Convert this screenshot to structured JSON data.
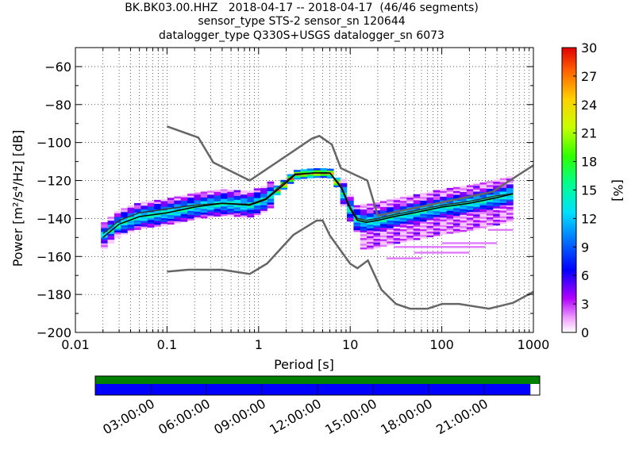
{
  "title_lines": [
    "BK.BK03.00.HHZ   2018-04-17 -- 2018-04-17  (46/46 segments)",
    "sensor_type STS-2 sensor_sn 120644",
    "datalogger_type Q330S+USGS datalogger_sn 6073"
  ],
  "chart_data": [
    {
      "type": "heatmap",
      "xlabel": "Period [s]",
      "ylabel": "Power [m²/s⁴/Hz] [dB]",
      "xscale": "log",
      "xlim": [
        0.01,
        1000
      ],
      "ylim": [
        -200,
        -50
      ],
      "x_ticks": [
        0.01,
        0.1,
        1,
        10,
        100,
        1000
      ],
      "x_tick_labels": [
        "0.01",
        "0.1",
        "1",
        "10",
        "100",
        "1000"
      ],
      "y_ticks": [
        -200,
        -180,
        -160,
        -140,
        -120,
        -100,
        -80,
        -60
      ],
      "grid": true,
      "colorbar": {
        "label": "[%]",
        "range": [
          0,
          30
        ],
        "ticks": [
          0,
          3,
          6,
          9,
          12,
          15,
          18,
          21,
          24,
          27,
          30
        ]
      },
      "nlnm": {
        "name": "low noise model",
        "period": [
          0.1,
          0.17,
          0.4,
          0.8,
          1.24,
          2.4,
          4.3,
          5.0,
          6.0,
          10.0,
          12.0,
          15.6,
          21.9,
          31.6,
          45,
          70,
          101,
          154,
          328,
          600,
          1000
        ],
        "power": [
          -168,
          -167,
          -167,
          -169.2,
          -163.7,
          -148.6,
          -141.1,
          -141.1,
          -149.0,
          -163.8,
          -166.2,
          -162.1,
          -177.5,
          -185.0,
          -187.5,
          -187.5,
          -185.0,
          -185.0,
          -187.5,
          -184.4,
          -178.6
        ]
      },
      "nhnm": {
        "name": "high noise model",
        "period": [
          0.1,
          0.22,
          0.32,
          0.8,
          3.8,
          4.6,
          6.3,
          7.9,
          15.4,
          20.0,
          354.8,
          1000
        ],
        "power": [
          -91.5,
          -97.4,
          -110.5,
          -120.0,
          -98.0,
          -96.5,
          -101.0,
          -113.5,
          -120.0,
          -138.5,
          -126.0,
          -112.0
        ]
      },
      "mode_line": {
        "name": "mode",
        "period": [
          0.02,
          0.03,
          0.05,
          0.1,
          0.2,
          0.4,
          0.8,
          1.2,
          1.8,
          2.5,
          4,
          6,
          8,
          10,
          12,
          15,
          20,
          30,
          50,
          100,
          200,
          400,
          600
        ],
        "power": [
          -150,
          -143,
          -139,
          -137,
          -134,
          -132,
          -133,
          -130,
          -123,
          -117,
          -116,
          -116,
          -124,
          -135,
          -141,
          -142,
          -141,
          -139,
          -137,
          -134,
          -132,
          -129,
          -127
        ]
      },
      "mean_line": {
        "name": "mean",
        "period": [
          0.02,
          0.03,
          0.05,
          0.1,
          0.2,
          0.4,
          0.8,
          1.2,
          1.8,
          2.5,
          4,
          6,
          8,
          10,
          12,
          15,
          20,
          30,
          50,
          100,
          200,
          400,
          600
        ],
        "power": [
          -148,
          -141,
          -137,
          -135,
          -133,
          -132,
          -132.5,
          -129.5,
          -122,
          -116.5,
          -116,
          -116,
          -123,
          -134,
          -140,
          -141,
          -140,
          -138,
          -136,
          -133,
          -131,
          -128,
          -127
        ]
      }
    },
    {
      "type": "timeline",
      "tick_labels": [
        "03:00:00",
        "06:00:00",
        "09:00:00",
        "12:00:00",
        "15:00:00",
        "18:00:00",
        "21:00:00"
      ],
      "data_fraction_used": 0.979,
      "data_fraction_available": 1.0,
      "colors": {
        "available": "#008000",
        "used": "#0000ff",
        "background": "#ffffff"
      }
    }
  ]
}
